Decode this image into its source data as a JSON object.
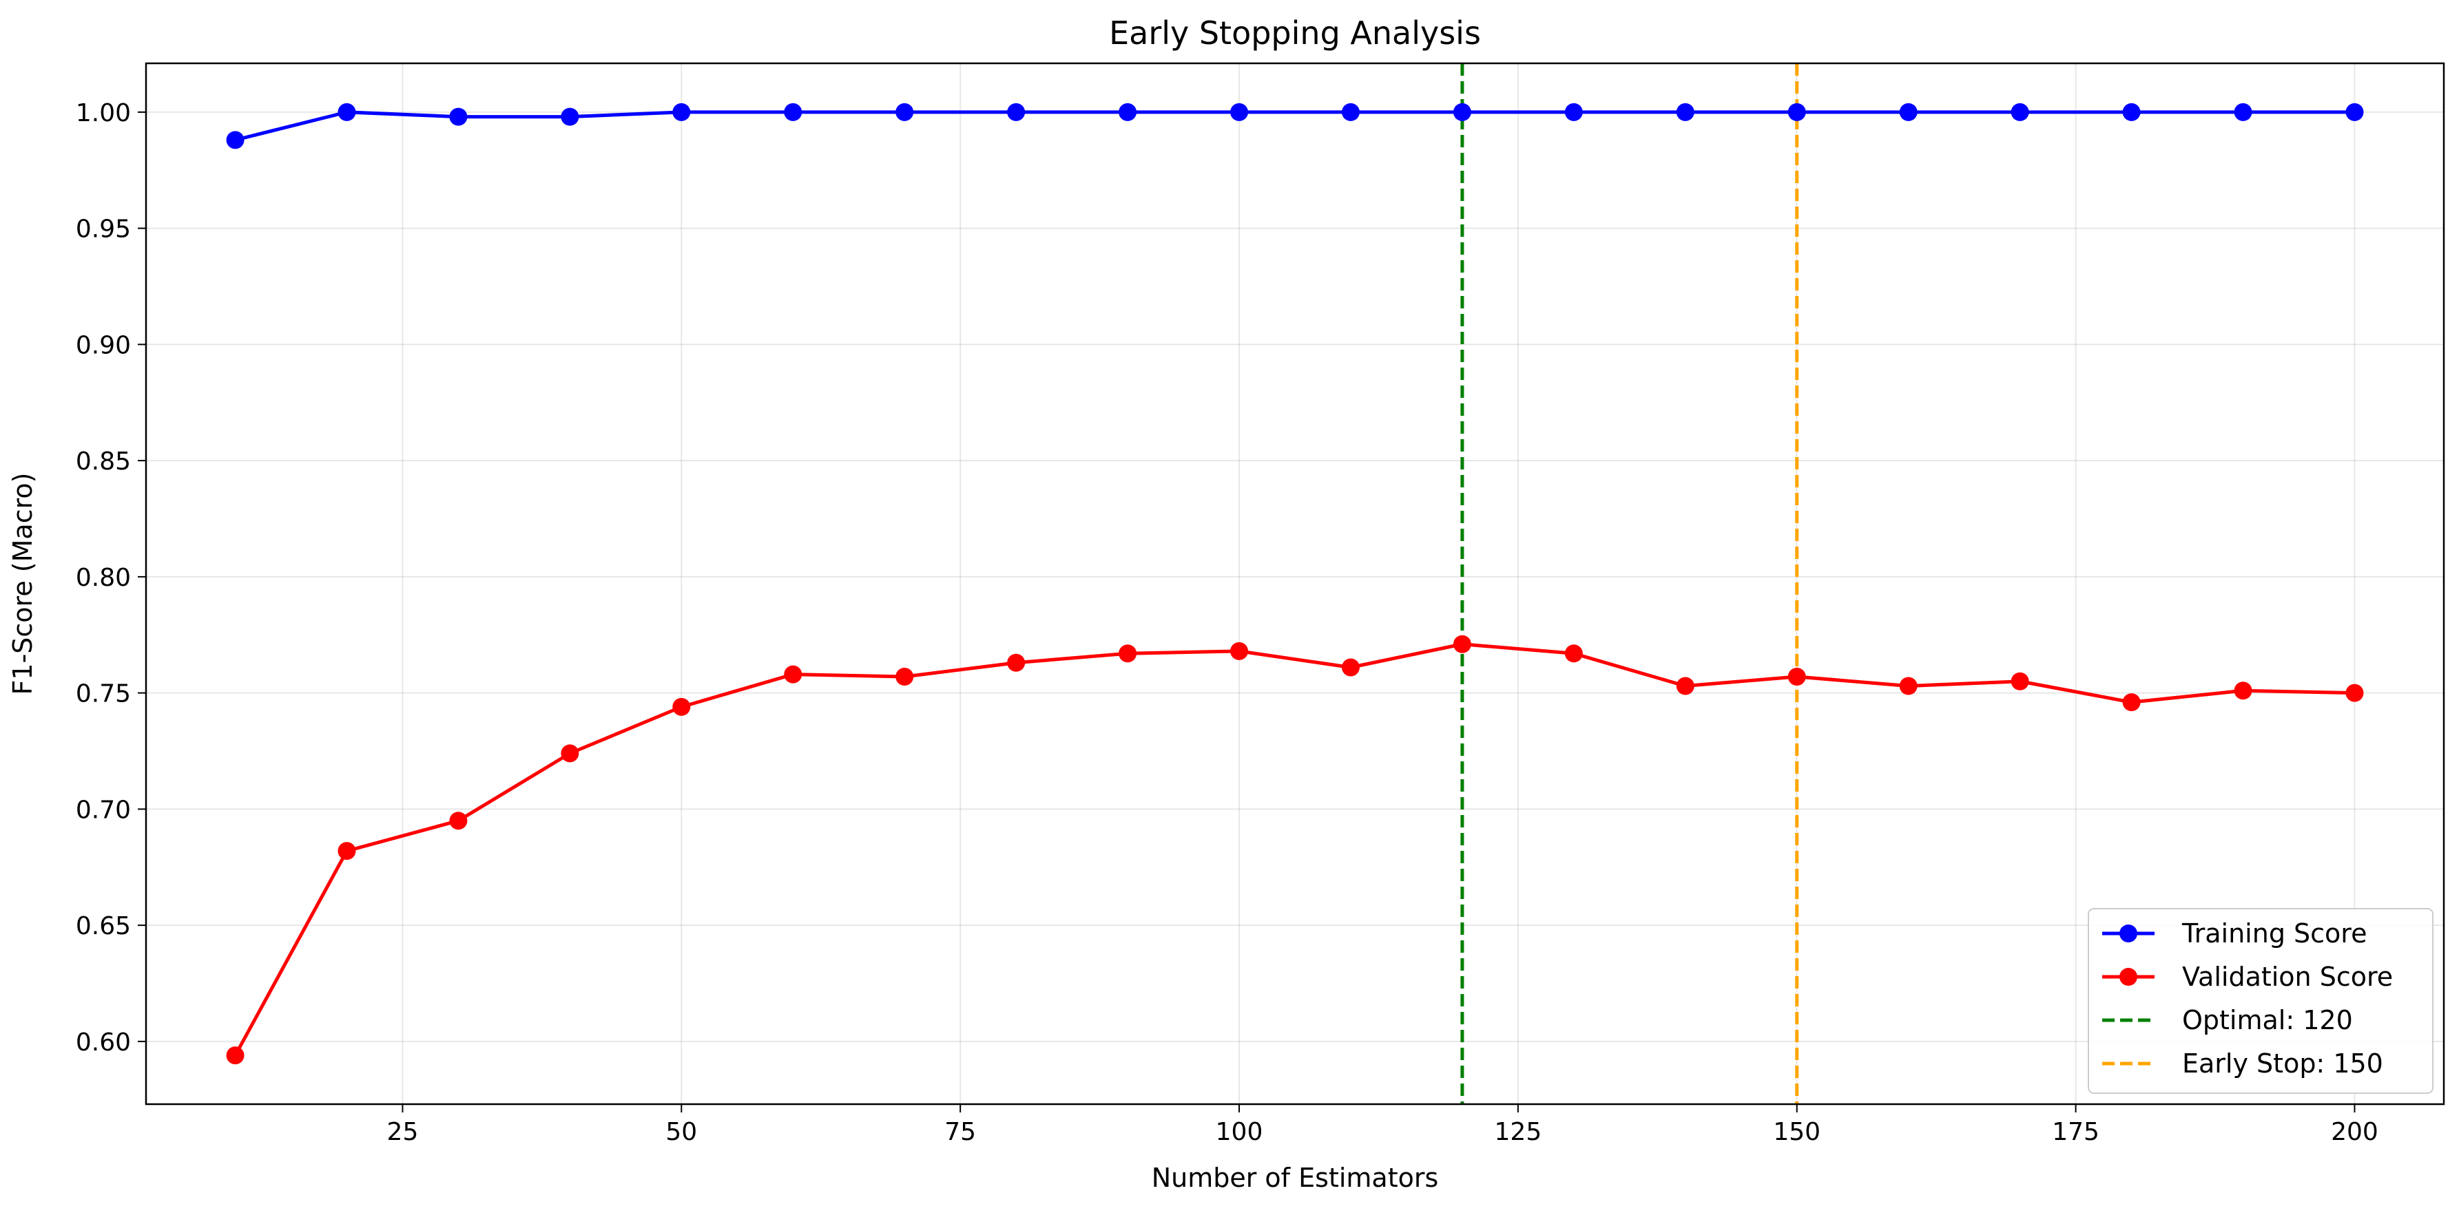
{
  "chart_data": {
    "type": "line",
    "title": "Early Stopping Analysis",
    "xlabel": "Number of Estimators",
    "ylabel": "F1-Score (Macro)",
    "xlim": [
      2,
      208
    ],
    "ylim": [
      0.573,
      1.021
    ],
    "xticks": [
      25,
      50,
      75,
      100,
      125,
      150,
      175,
      200
    ],
    "yticks": [
      0.6,
      0.65,
      0.7,
      0.75,
      0.8,
      0.85,
      0.9,
      0.95,
      1.0
    ],
    "grid": true,
    "legend_position": "lower-right",
    "x": [
      10,
      20,
      30,
      40,
      50,
      60,
      70,
      80,
      90,
      100,
      110,
      120,
      130,
      140,
      150,
      160,
      170,
      180,
      190,
      200
    ],
    "series": [
      {
        "name": "Training Score",
        "color": "#0000ff",
        "marker": "circle",
        "values": [
          0.988,
          1.0,
          0.998,
          0.998,
          1.0,
          1.0,
          1.0,
          1.0,
          1.0,
          1.0,
          1.0,
          1.0,
          1.0,
          1.0,
          1.0,
          1.0,
          1.0,
          1.0,
          1.0,
          1.0
        ]
      },
      {
        "name": "Validation Score",
        "color": "#ff0000",
        "marker": "circle",
        "values": [
          0.594,
          0.682,
          0.695,
          0.724,
          0.744,
          0.758,
          0.757,
          0.763,
          0.767,
          0.768,
          0.761,
          0.771,
          0.767,
          0.753,
          0.757,
          0.753,
          0.755,
          0.746,
          0.751,
          0.75
        ]
      }
    ],
    "vlines": [
      {
        "name": "Optimal: 120",
        "x": 120,
        "color": "#008000",
        "style": "dashed"
      },
      {
        "name": "Early Stop: 150",
        "x": 150,
        "color": "#ffa500",
        "style": "dashed"
      }
    ]
  }
}
